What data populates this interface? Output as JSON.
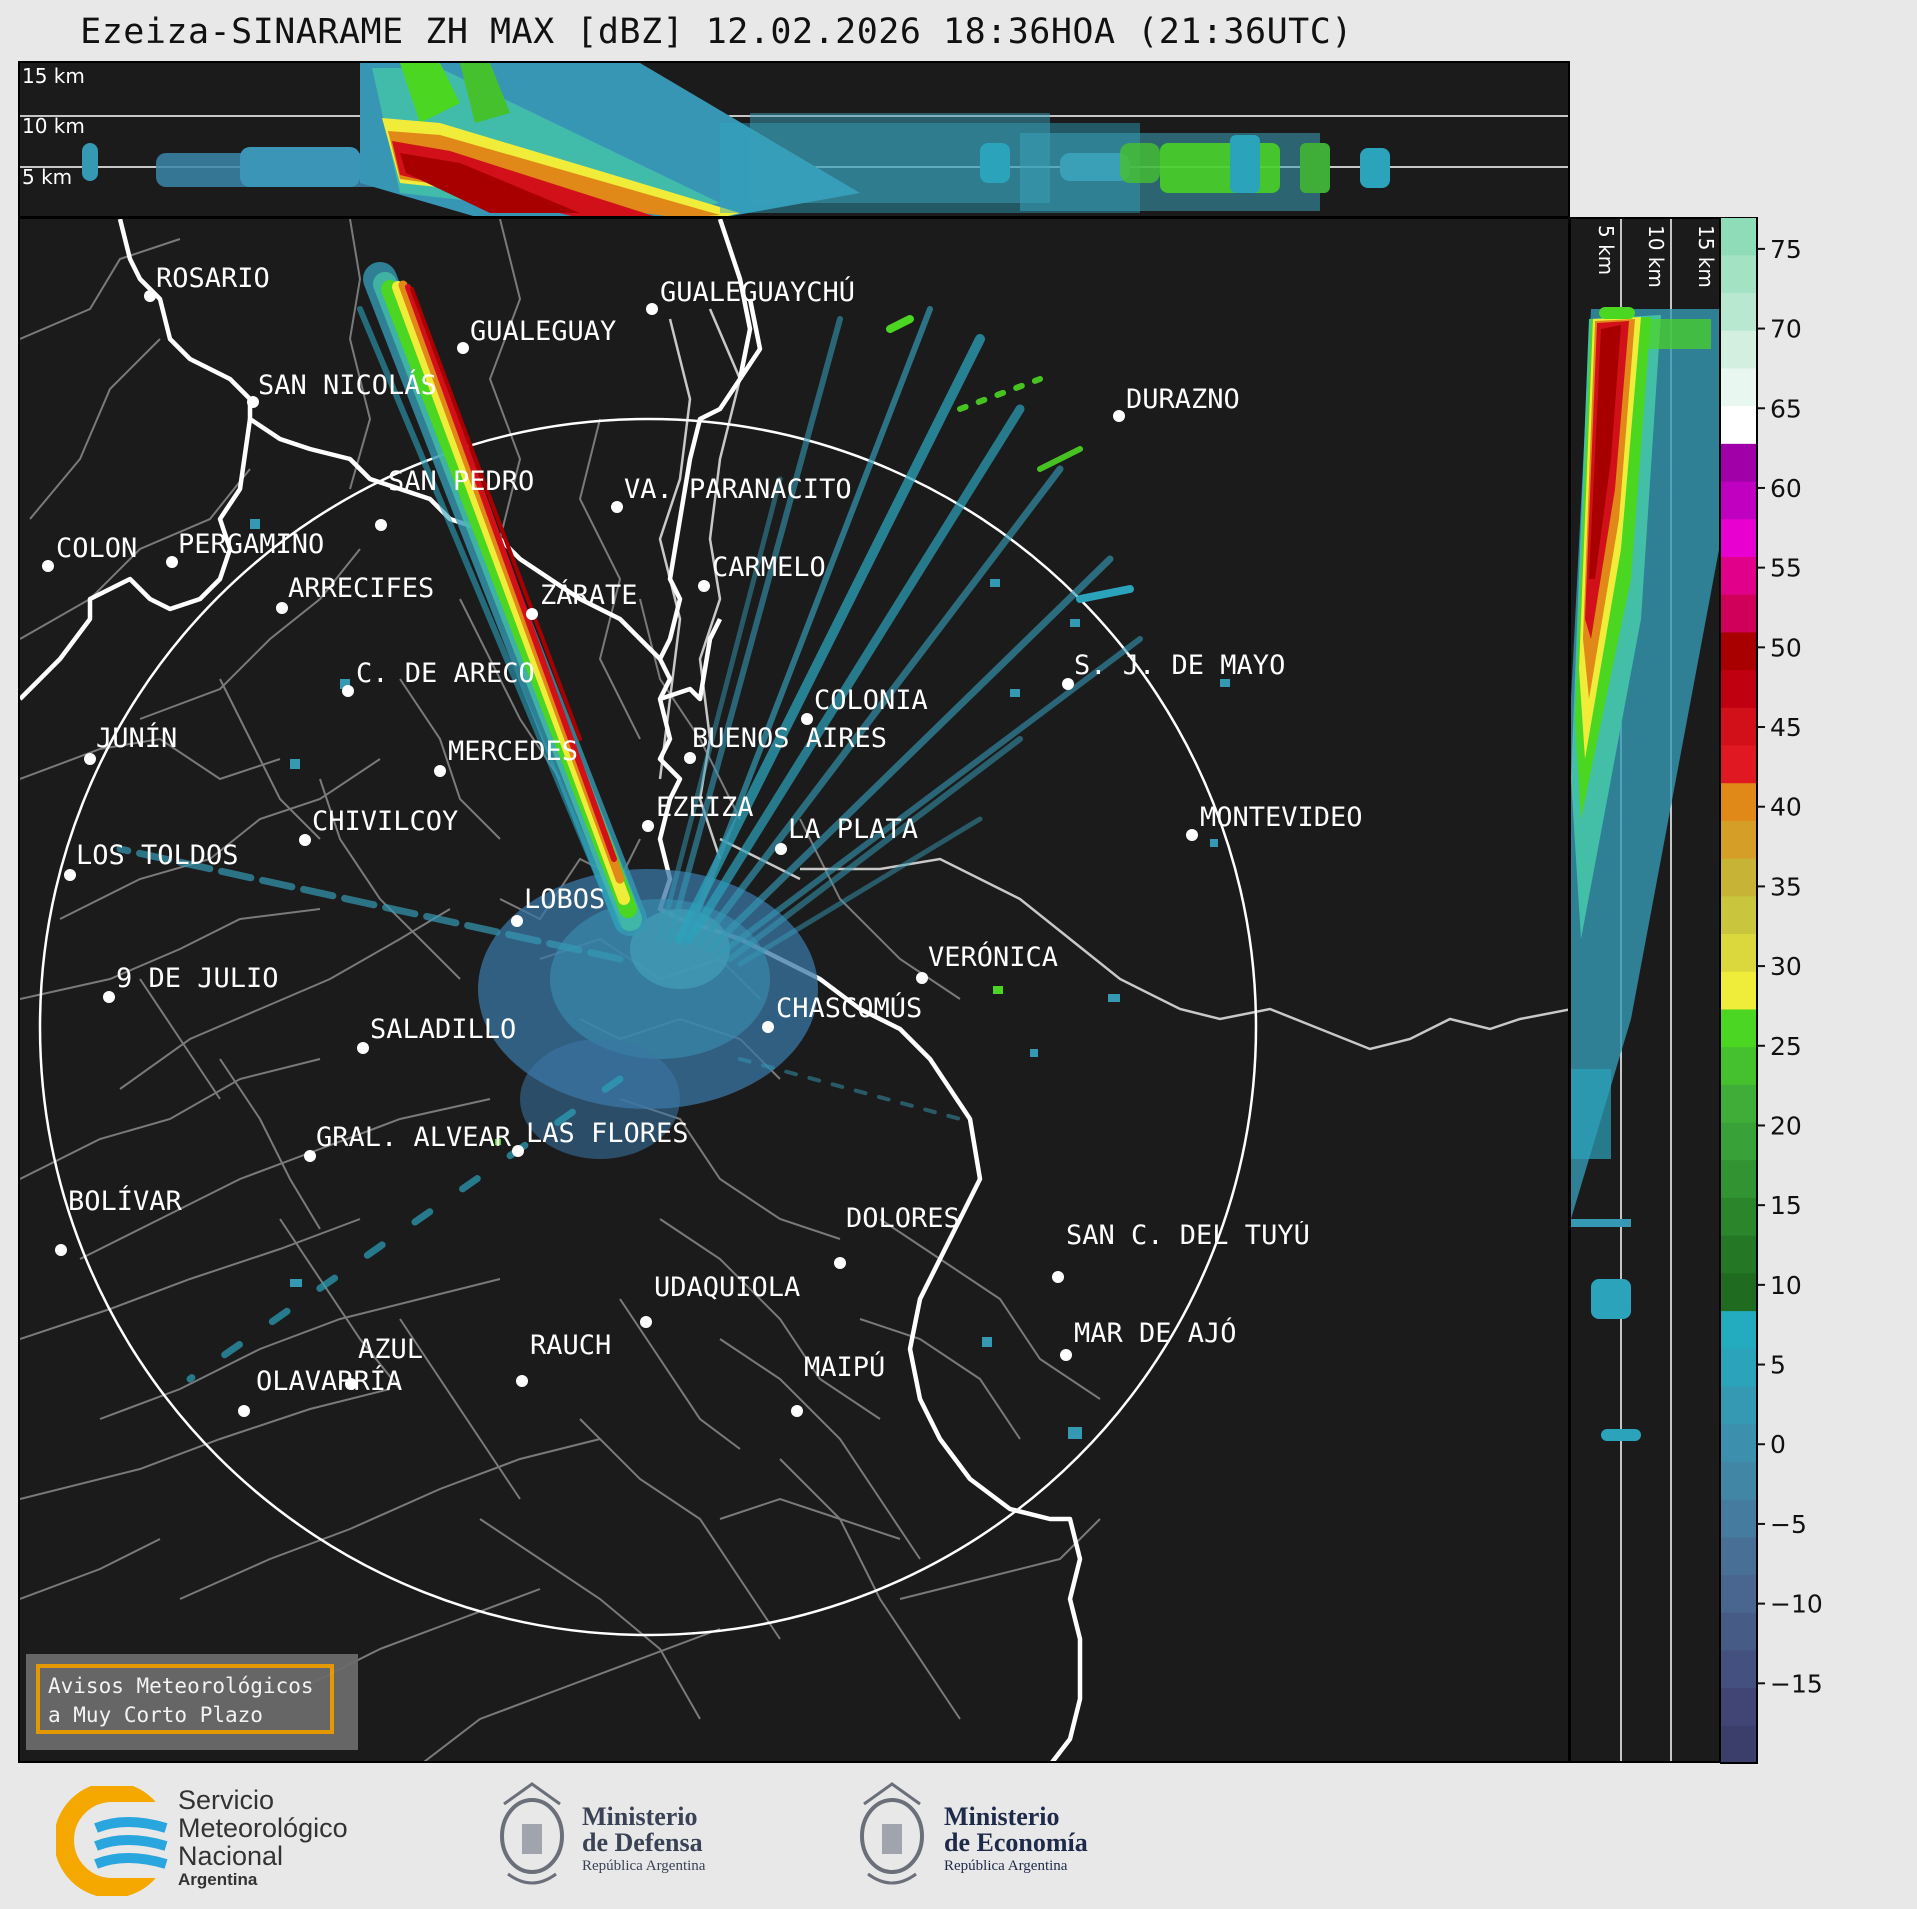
{
  "title": "Ezeiza-SINARAME ZH MAX [dBZ] 12.02.2026 18:36HOA (21:36UTC)",
  "top_panel": {
    "height_labels": [
      "15 km",
      "10 km",
      "5 km"
    ]
  },
  "side_panel": {
    "height_labels": [
      "5 km",
      "10 km",
      "15 km"
    ]
  },
  "colorbar": {
    "ticks": [
      "75",
      "70",
      "65",
      "60",
      "55",
      "50",
      "45",
      "40",
      "35",
      "30",
      "25",
      "20",
      "15",
      "10",
      "5",
      "0",
      "−5",
      "−10",
      "−15"
    ],
    "colors": [
      "#3b3e6b",
      "#404575",
      "#44507f",
      "#475b87",
      "#48668f",
      "#487097",
      "#457b9f",
      "#4286a6",
      "#3c90ad",
      "#3599b4",
      "#2ba3bb",
      "#23acbf",
      "#1f6b1f",
      "#247724",
      "#2b852b",
      "#319331",
      "#38a138",
      "#3fae38",
      "#46c12e",
      "#4bd621",
      "#f0ec3a",
      "#dad83c",
      "#c9c53c",
      "#c7b336",
      "#d59e26",
      "#e08818",
      "#e01822",
      "#d2101a",
      "#c00010",
      "#a80000",
      "#d0005a",
      "#e0008a",
      "#e800d0",
      "#c000c0",
      "#a000a8",
      "#ffffff",
      "#e8f7ef",
      "#d2efe0",
      "#b8e8d0",
      "#a4e2c4",
      "#8edcb8"
    ]
  },
  "cities": [
    {
      "name": "ROSARIO"
    },
    {
      "name": "GUALEGUAYCHÚ"
    },
    {
      "name": "GUALEGUAY"
    },
    {
      "name": "SAN NICOLÁS"
    },
    {
      "name": "DURAZNO"
    },
    {
      "name": "SAN PEDRO"
    },
    {
      "name": "VA. PARANACITO"
    },
    {
      "name": "COLON"
    },
    {
      "name": "PERGAMINO"
    },
    {
      "name": "CARMELO"
    },
    {
      "name": "ARRECIFES"
    },
    {
      "name": "ZÁRATE"
    },
    {
      "name": "S. J. DE MAYO"
    },
    {
      "name": "C. DE ARECO"
    },
    {
      "name": "COLONIA"
    },
    {
      "name": "JUNÍN"
    },
    {
      "name": "BUENOS AIRES"
    },
    {
      "name": "MERCEDES"
    },
    {
      "name": "EZEIZA"
    },
    {
      "name": "MONTEVIDEO"
    },
    {
      "name": "CHIVILCOY"
    },
    {
      "name": "LA PLATA"
    },
    {
      "name": "LOS TOLDOS"
    },
    {
      "name": "LOBOS"
    },
    {
      "name": "VERÓNICA"
    },
    {
      "name": "9 DE JULIO"
    },
    {
      "name": "CHASCOMÚS"
    },
    {
      "name": "SALADILLO"
    },
    {
      "name": "GRAL. ALVEAR"
    },
    {
      "name": "LAS FLORES"
    },
    {
      "name": "BOLÍVAR"
    },
    {
      "name": "DOLORES"
    },
    {
      "name": "SAN C. DEL TUYÚ"
    },
    {
      "name": "UDAQUIOLA"
    },
    {
      "name": "MAR DE AJÓ"
    },
    {
      "name": "RAUCH"
    },
    {
      "name": "AZUL"
    },
    {
      "name": "OLAVARRÍA"
    },
    {
      "name": "MAIPÚ"
    }
  ],
  "warning": {
    "line1": "Avisos Meteorológicos",
    "line2": "a Muy Corto Plazo"
  },
  "logos": {
    "smn": {
      "line1": "Servicio",
      "line2": "Meteorológico",
      "line3": "Nacional",
      "line4": "Argentina"
    },
    "defensa": {
      "line1": "Ministerio",
      "line2": "de Defensa",
      "line3": "República Argentina"
    },
    "economia": {
      "line1": "Ministerio",
      "line2": "de Economía",
      "line3": "República Argentina"
    }
  },
  "colors": {
    "background": "#e8e8e8",
    "panel": "#1b1b1b",
    "warning_border": "#f0a000",
    "smn_orange": "#f5a800",
    "smn_blue": "#2aa6de"
  }
}
